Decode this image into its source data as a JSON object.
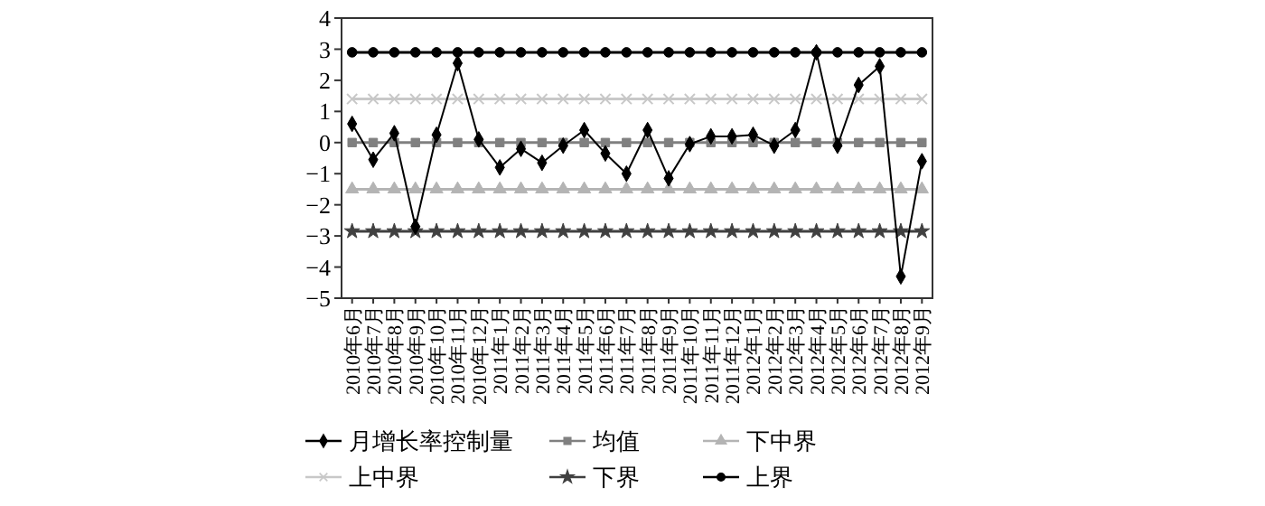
{
  "chart_data": {
    "type": "line",
    "categories": [
      "2010年6月",
      "2010年7月",
      "2010年8月",
      "2010年9月",
      "2010年10月",
      "2010年11月",
      "2010年12月",
      "2011年1月",
      "2011年2月",
      "2011年3月",
      "2011年4月",
      "2011年5月",
      "2011年6月",
      "2011年7月",
      "2011年8月",
      "2011年9月",
      "2011年10月",
      "2011年11月",
      "2011年12月",
      "2012年1月",
      "2012年2月",
      "2012年3月",
      "2012年4月",
      "2012年5月",
      "2012年6月",
      "2012年7月",
      "2012年8月",
      "2012年9月"
    ],
    "series": [
      {
        "name": "月增长率控制量",
        "color": "#000000",
        "marker": "diamond",
        "values": [
          0.6,
          -0.55,
          0.3,
          -2.7,
          0.25,
          2.55,
          0.1,
          -0.8,
          -0.2,
          -0.65,
          -0.1,
          0.4,
          -0.35,
          -1.0,
          0.4,
          -1.15,
          -0.05,
          0.2,
          0.2,
          0.25,
          -0.1,
          0.4,
          2.9,
          -0.1,
          1.85,
          2.45,
          -4.3,
          -0.6
        ]
      },
      {
        "name": "均值",
        "color": "#808080",
        "marker": "square",
        "values": [
          0,
          0,
          0,
          0,
          0,
          0,
          0,
          0,
          0,
          0,
          0,
          0,
          0,
          0,
          0,
          0,
          0,
          0,
          0,
          0,
          0,
          0,
          0,
          0,
          0,
          0,
          0,
          0
        ]
      },
      {
        "name": "下中界",
        "color": "#b4b4b4",
        "marker": "triangle",
        "values": [
          -1.5,
          -1.5,
          -1.5,
          -1.5,
          -1.5,
          -1.5,
          -1.5,
          -1.5,
          -1.5,
          -1.5,
          -1.5,
          -1.5,
          -1.5,
          -1.5,
          -1.5,
          -1.5,
          -1.5,
          -1.5,
          -1.5,
          -1.5,
          -1.5,
          -1.5,
          -1.5,
          -1.5,
          -1.5,
          -1.5,
          -1.5,
          -1.5
        ]
      },
      {
        "name": "上中界",
        "color": "#c8c8c8",
        "marker": "cross",
        "values": [
          1.4,
          1.4,
          1.4,
          1.4,
          1.4,
          1.4,
          1.4,
          1.4,
          1.4,
          1.4,
          1.4,
          1.4,
          1.4,
          1.4,
          1.4,
          1.4,
          1.4,
          1.4,
          1.4,
          1.4,
          1.4,
          1.4,
          1.4,
          1.4,
          1.4,
          1.4,
          1.4,
          1.4
        ]
      },
      {
        "name": "下界",
        "color": "#404040",
        "marker": "star",
        "values": [
          -2.85,
          -2.85,
          -2.85,
          -2.85,
          -2.85,
          -2.85,
          -2.85,
          -2.85,
          -2.85,
          -2.85,
          -2.85,
          -2.85,
          -2.85,
          -2.85,
          -2.85,
          -2.85,
          -2.85,
          -2.85,
          -2.85,
          -2.85,
          -2.85,
          -2.85,
          -2.85,
          -2.85,
          -2.85,
          -2.85,
          -2.85,
          -2.85
        ]
      },
      {
        "name": "上界",
        "color": "#000000",
        "marker": "circle",
        "values": [
          2.9,
          2.9,
          2.9,
          2.9,
          2.9,
          2.9,
          2.9,
          2.9,
          2.9,
          2.9,
          2.9,
          2.9,
          2.9,
          2.9,
          2.9,
          2.9,
          2.9,
          2.9,
          2.9,
          2.9,
          2.9,
          2.9,
          2.9,
          2.9,
          2.9,
          2.9,
          2.9,
          2.9
        ]
      }
    ],
    "ylim": [
      -5,
      4
    ],
    "yticks": [
      -5,
      -4,
      -3,
      -2,
      -1,
      0,
      1,
      2,
      3,
      4
    ],
    "grid": false,
    "legend": "bottom",
    "line_style": "solid"
  }
}
